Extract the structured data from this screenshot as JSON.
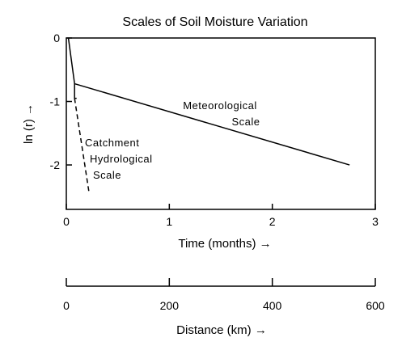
{
  "chart_data": {
    "type": "line",
    "title": "Scales of Soil Moisture Variation",
    "xlabel": "Time (months) →",
    "ylabel": "ln (r) →",
    "x2label": "Distance (km) →",
    "xlim": [
      0,
      3
    ],
    "ylim": [
      -2.7,
      0
    ],
    "x2lim": [
      0,
      600
    ],
    "xticks": [
      "0",
      "1",
      "2",
      "3"
    ],
    "yticks": [
      "0",
      "-1",
      "-2"
    ],
    "x2ticks": [
      "0",
      "200",
      "400",
      "600"
    ],
    "grid": false,
    "series": [
      {
        "label_lines": [
          "Meteorological",
          "Scale"
        ],
        "style": "solid",
        "x": [
          0.08,
          2.75
        ],
        "y": [
          -0.72,
          -2.0
        ]
      },
      {
        "label_lines": [
          "Catchment",
          "Hydrological",
          "Scale"
        ],
        "style": "dashed",
        "x": [
          0.08,
          0.22
        ],
        "y": [
          -0.95,
          -2.43
        ]
      },
      {
        "label_lines": [],
        "style": "solid",
        "x": [
          0.02,
          0.08,
          0.08,
          0.1
        ],
        "y": [
          0.0,
          -0.72,
          -0.95,
          -0.95
        ]
      }
    ]
  }
}
